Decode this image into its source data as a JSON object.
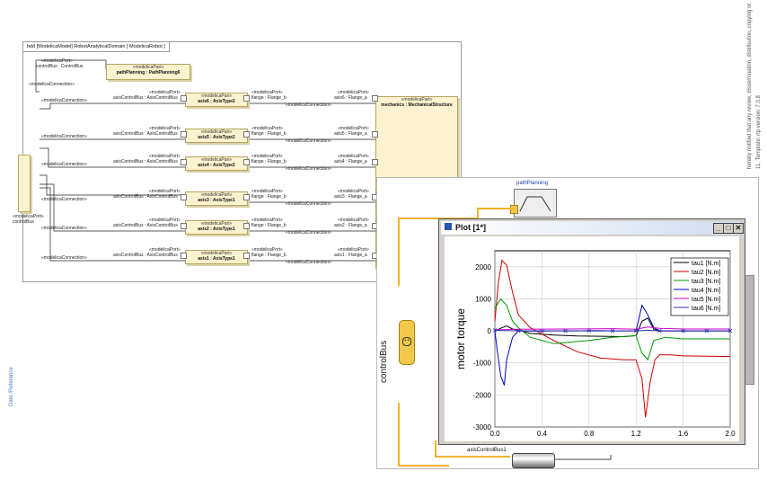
{
  "diagram": {
    "header": "bdd [ModelicaModel] RobotAnalyticalDomain [ ModelicaRobot ]",
    "stereo_part": "«modelicaPart»",
    "stereo_port": "«modelicaPort»",
    "stereo_conn": "«modelicaConnection»",
    "path_planning": "pathPlanning : PathPlanning6",
    "control_bus_port": "controlBus : ControlBus",
    "left_port_label": "controlBus",
    "mechanics": "mechanics : MechanicalStructure",
    "axis_port": "axisControlBus : AxisControlBus",
    "axes": [
      {
        "name": "axis6 : AxisType2",
        "flange_b": "flange : Flange_b",
        "flange_a": "axis6 : Flange_a"
      },
      {
        "name": "axis5 : AxisType2",
        "flange_b": "flange : Flange_b",
        "flange_a": "axis5 : Flange_a"
      },
      {
        "name": "axis4 : AxisType2",
        "flange_b": "flange : Flange_b",
        "flange_a": "axis4 : Flange_a"
      },
      {
        "name": "axis3 : AxisType1",
        "flange_b": "flange : Flange_b",
        "flange_a": "axis3 : Flange_a"
      },
      {
        "name": "axis2 : AxisType1",
        "flange_b": "flange : Flange_b",
        "flange_a": "axis2 : Flange_a"
      },
      {
        "name": "axis1 : AxisType1",
        "flange_b": "flange : Flange_b",
        "flange_a": "axis1 : Flange_a"
      }
    ]
  },
  "modelica": {
    "path_planning": "pathPlanning",
    "control_bus": "controlBus",
    "axis_control_bus": "axisControlBus1"
  },
  "plot_window": {
    "title": "Plot [1*]",
    "min": "_",
    "max": "□",
    "close": "✕"
  },
  "side_text": {
    "right": "hereby notified that any review, dissemination, distribution, copying or",
    "right2": "11, Template: rtp version: 7.0.8",
    "left": "Date /Reference"
  },
  "chart_data": {
    "type": "line",
    "ylabel": "motor torque",
    "xlabel": "",
    "xlim": [
      0,
      2.0
    ],
    "ylim": [
      -3000,
      2500
    ],
    "x_ticks": [
      "0.0",
      "0.4",
      "0.8",
      "1.2",
      "1.6",
      "2.0"
    ],
    "y_ticks": [
      "2000",
      "1000",
      "0",
      "-1000",
      "-2000",
      "-3000"
    ],
    "grid": true,
    "legend_position": "top-right",
    "series": [
      {
        "name": "tau1 [N.m]",
        "color": "#000000",
        "x": [
          0,
          0.05,
          0.1,
          0.15,
          0.2,
          0.3,
          0.5,
          0.7,
          0.9,
          1.1,
          1.2,
          1.25,
          1.3,
          1.35,
          1.4,
          1.6,
          2.0
        ],
        "y": [
          0,
          80,
          150,
          60,
          20,
          -80,
          -130,
          -160,
          -170,
          -180,
          -150,
          300,
          400,
          50,
          0,
          0,
          0
        ]
      },
      {
        "name": "tau2 [N.m]",
        "color": "#cc0000",
        "x": [
          0,
          0.03,
          0.06,
          0.1,
          0.15,
          0.2,
          0.3,
          0.5,
          0.7,
          0.9,
          1.1,
          1.2,
          1.25,
          1.28,
          1.32,
          1.36,
          1.4,
          1.5,
          1.6,
          2.0
        ],
        "y": [
          300,
          1500,
          2200,
          2050,
          1200,
          500,
          100,
          -300,
          -650,
          -850,
          -900,
          -900,
          -1500,
          -2700,
          -1600,
          -900,
          -750,
          -750,
          -780,
          -800
        ]
      },
      {
        "name": "tau3 [N.m]",
        "color": "#009900",
        "x": [
          0,
          0.05,
          0.1,
          0.15,
          0.2,
          0.3,
          0.5,
          0.8,
          1.0,
          1.2,
          1.25,
          1.3,
          1.35,
          1.45,
          1.6,
          2.0
        ],
        "y": [
          700,
          1000,
          800,
          300,
          100,
          -200,
          -400,
          -300,
          -200,
          -150,
          -700,
          -900,
          -300,
          -200,
          -250,
          -250
        ]
      },
      {
        "name": "tau4 [N.m]",
        "color": "#0000cc",
        "x": [
          0,
          0.02,
          0.05,
          0.08,
          0.1,
          0.15,
          0.2,
          0.4,
          0.8,
          1.2,
          1.25,
          1.3,
          1.35,
          1.4,
          1.6,
          2.0
        ],
        "y": [
          0,
          -600,
          -1400,
          -1700,
          -900,
          -200,
          0,
          0,
          0,
          0,
          800,
          500,
          100,
          0,
          0,
          0
        ]
      },
      {
        "name": "tau5 [N.m]",
        "color": "#cc00cc",
        "x": [
          0,
          0.2,
          0.6,
          1.0,
          1.2,
          1.3,
          1.4,
          1.6,
          2.0
        ],
        "y": [
          30,
          50,
          60,
          70,
          50,
          120,
          80,
          60,
          60
        ]
      },
      {
        "name": "tau6 [N.m]",
        "color": "#3333aa",
        "x": [
          0,
          0.1,
          0.2,
          0.3,
          0.4,
          0.5,
          0.6,
          0.7,
          0.8,
          0.9,
          1.0,
          1.1,
          1.2,
          1.3,
          1.4,
          1.5,
          1.6,
          1.7,
          1.8,
          1.9,
          2.0
        ],
        "y": [
          20,
          10,
          0,
          -10,
          -10,
          0,
          0,
          0,
          10,
          10,
          0,
          0,
          0,
          20,
          0,
          0,
          0,
          0,
          0,
          0,
          0
        ]
      }
    ]
  }
}
